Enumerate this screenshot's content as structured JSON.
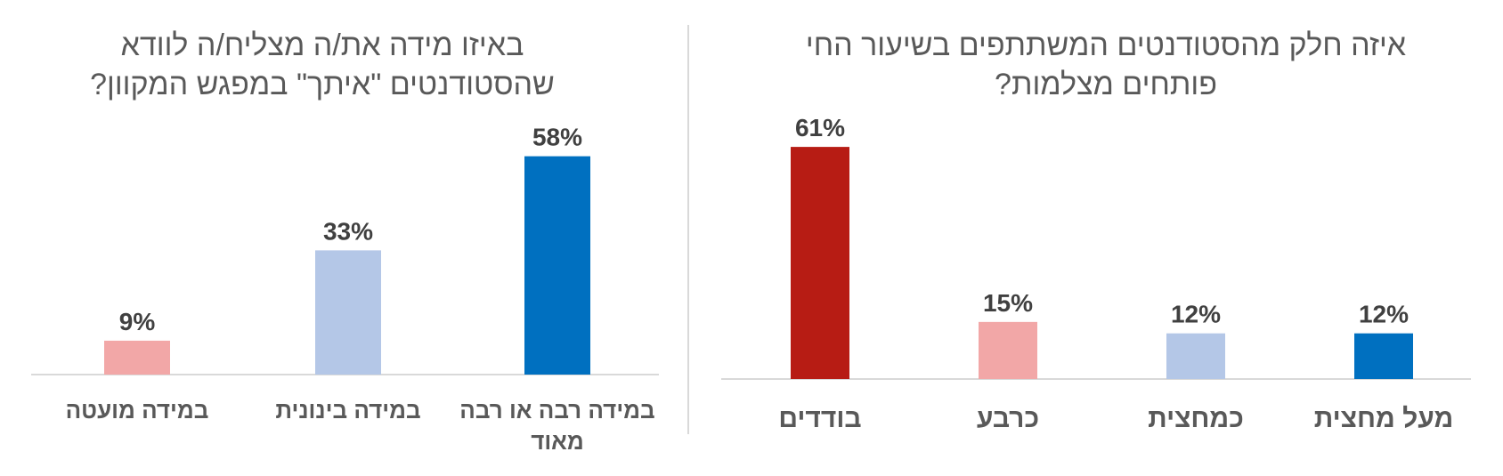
{
  "chart_data": [
    {
      "type": "bar",
      "title_lines": [
        "באיזו מידה את/ה מצליח/ה לוודא",
        "שהסטודנטים \"איתך\" במפגש המקוון?"
      ],
      "categories": [
        [
          "במידה מועטה"
        ],
        [
          "במידה בינונית"
        ],
        [
          "במידה רבה או רבה",
          "מאוד"
        ]
      ],
      "values": [
        9,
        33,
        58
      ],
      "value_labels": [
        "9%",
        "33%",
        "58%"
      ],
      "colors": [
        "#F2A7A7",
        "#B4C7E7",
        "#0070C0"
      ],
      "ylim": [
        0,
        65
      ],
      "grid": false,
      "legend": "none"
    },
    {
      "type": "bar",
      "title_lines": [
        "איזה חלק מהסטודנטים המשתתפים בשיעור החי",
        "פותחים מצלמות?"
      ],
      "categories": [
        [
          "בודדים"
        ],
        [
          "כרבע"
        ],
        [
          "כמחצית"
        ],
        [
          "מעל מחצית"
        ]
      ],
      "values": [
        61,
        15,
        12,
        12
      ],
      "value_labels": [
        "61%",
        "15%",
        "12%",
        "12%"
      ],
      "colors": [
        "#B71C14",
        "#F2A7A7",
        "#B4C7E7",
        "#0070C0"
      ],
      "ylim": [
        0,
        65
      ],
      "grid": false,
      "legend": "none"
    }
  ]
}
